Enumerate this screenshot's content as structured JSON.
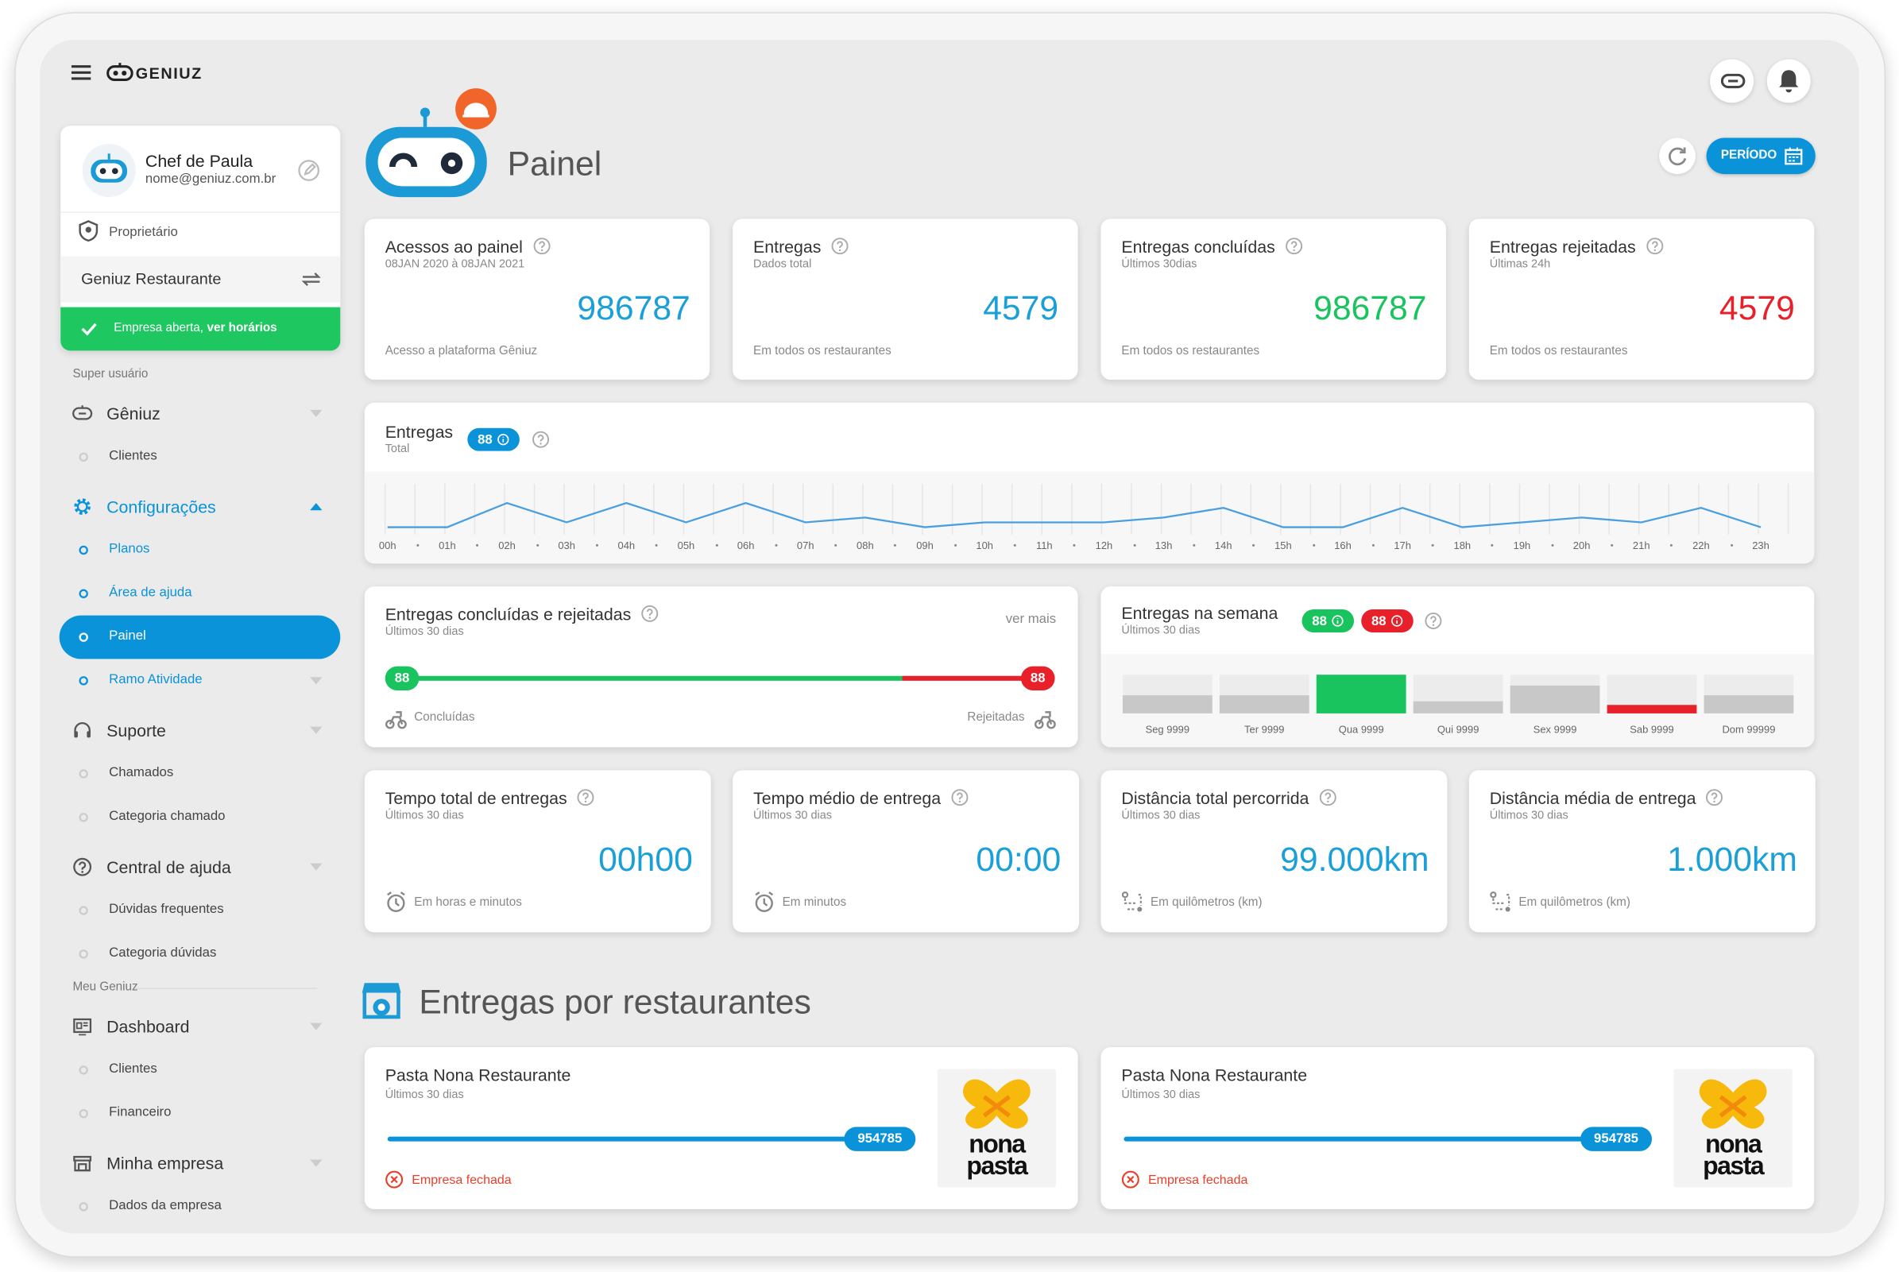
{
  "header": {
    "brand": "GENIUZ"
  },
  "profile": {
    "name": "Chef de Paula",
    "email": "nome@geniuz.com.br",
    "role": "Proprietário",
    "restaurant": "Geniuz Restaurante",
    "status": "Empresa aberta, ",
    "status_link": "ver horários"
  },
  "sidebar": {
    "sections": [
      {
        "label": "Super usuário",
        "groups": [
          {
            "label": "Gêniuz",
            "icon": "robot",
            "items": [
              {
                "label": "Clientes"
              }
            ]
          },
          {
            "label": "Configurações",
            "icon": "gear",
            "active": true,
            "items": [
              {
                "label": "Planos"
              },
              {
                "label": "Área de ajuda"
              },
              {
                "label": "Painel",
                "selected": true
              },
              {
                "label": "Ramo Atividade",
                "expandable": true
              }
            ]
          },
          {
            "label": "Suporte",
            "icon": "headset",
            "items": [
              {
                "label": "Chamados"
              },
              {
                "label": "Categoria chamado"
              }
            ]
          },
          {
            "label": "Central de ajuda",
            "icon": "help",
            "items": [
              {
                "label": "Dúvidas frequentes"
              },
              {
                "label": "Categoria dúvidas"
              }
            ]
          }
        ]
      },
      {
        "label": "Meu Geniuz",
        "groups": [
          {
            "label": "Dashboard",
            "icon": "dashboard",
            "items": [
              {
                "label": "Clientes"
              },
              {
                "label": "Financeiro"
              }
            ]
          },
          {
            "label": "Minha empresa",
            "icon": "store",
            "items": [
              {
                "label": "Dados da empresa"
              }
            ]
          }
        ]
      }
    ]
  },
  "page": {
    "title": "Painel",
    "period_button": "PERÍODO"
  },
  "stat_cards": [
    {
      "title": "Acessos ao painel",
      "subtitle": "08JAN 2020 à 08JAN 2021",
      "value": 986787,
      "footer": "Acesso a plataforma Gêniuz",
      "color": "#1a9fd9"
    },
    {
      "title": "Entregas",
      "subtitle": "Dados total",
      "value": 4579,
      "footer": "Em todos os restaurantes",
      "color": "#1a9fd9"
    },
    {
      "title": "Entregas concluídas",
      "subtitle": "Últimos 30dias",
      "value": 986787,
      "footer": "Em todos os restaurantes",
      "color": "#19c35e"
    },
    {
      "title": "Entregas rejeitadas",
      "subtitle": "Últimas 24h",
      "value": 4579,
      "footer": "Em todos os restaurantes",
      "color": "#e8202a"
    }
  ],
  "deliveries_chart": {
    "type": "line",
    "title": "Entregas",
    "subtitle": "Total",
    "badge": 88,
    "color": "#4a9fe0",
    "ylim": [
      0,
      10
    ],
    "categories": [
      "00h",
      "01h",
      "02h",
      "03h",
      "04h",
      "05h",
      "06h",
      "07h",
      "08h",
      "09h",
      "10h",
      "11h",
      "12h",
      "13h",
      "14h",
      "15h",
      "16h",
      "17h",
      "18h",
      "19h",
      "20h",
      "21h",
      "22h",
      "23h"
    ],
    "values": [
      1,
      1,
      6,
      2,
      6,
      2,
      6,
      2,
      3,
      1,
      2,
      2,
      2,
      3,
      5,
      1,
      1,
      5,
      1,
      2,
      3,
      2,
      5,
      1
    ]
  },
  "completed_rejected": {
    "title": "Entregas concluídas e rejeitadas",
    "subtitle": "Últimos 30 dias",
    "link": "ver mais",
    "completed": 88,
    "rejected": 88,
    "completed_label": "Concluídas",
    "rejected_label": "Rejeitadas"
  },
  "weekly": {
    "title": "Entregas na semana",
    "subtitle": "Últimos 30 dias",
    "badge_up": 88,
    "badge_down": 88,
    "ylim": [
      0,
      100
    ],
    "days": [
      {
        "label": "Seg 9999",
        "height": 47,
        "color": "#c8c8c8"
      },
      {
        "label": "Ter 9999",
        "height": 47,
        "color": "#c8c8c8"
      },
      {
        "label": "Qua 9999",
        "height": 100,
        "color": "#19c35e"
      },
      {
        "label": "Qui 9999",
        "height": 31,
        "color": "#c8c8c8"
      },
      {
        "label": "Sex 9999",
        "height": 72,
        "color": "#c8c8c8"
      },
      {
        "label": "Sab 9999",
        "height": 22,
        "color": "#e8202a"
      },
      {
        "label": "Dom 99999",
        "height": 47,
        "color": "#c8c8c8"
      }
    ]
  },
  "time_cards": [
    {
      "title": "Tempo total de entregas",
      "subtitle": "Últimos 30 dias",
      "value": "00h00",
      "footer": "Em horas e minutos",
      "icon": "clock"
    },
    {
      "title": "Tempo médio de entrega",
      "subtitle": "Últimos 30 dias",
      "value": "00:00",
      "footer": "Em minutos",
      "icon": "clock"
    },
    {
      "title": "Distância total percorrida",
      "subtitle": "Últimos 30 dias",
      "value": "99.000km",
      "footer": "Em quilômetros (km)",
      "icon": "route"
    },
    {
      "title": "Distância média de entrega",
      "subtitle": "Últimos 30 dias",
      "value": "1.000km",
      "footer": "Em quilômetros (km)",
      "icon": "route"
    }
  ],
  "restaurants": {
    "title": "Entregas por restaurantes",
    "cards": [
      {
        "name": "Pasta Nona Restaurante",
        "subtitle": "Últimos 30 dias",
        "value": 954785,
        "status": "Empresa fechada",
        "logo": [
          "nona",
          "pasta"
        ]
      },
      {
        "name": "Pasta Nona Restaurante",
        "subtitle": "Últimos 30 dias",
        "value": 954785,
        "status": "Empresa fechada",
        "logo": [
          "nona",
          "pasta"
        ]
      }
    ]
  }
}
